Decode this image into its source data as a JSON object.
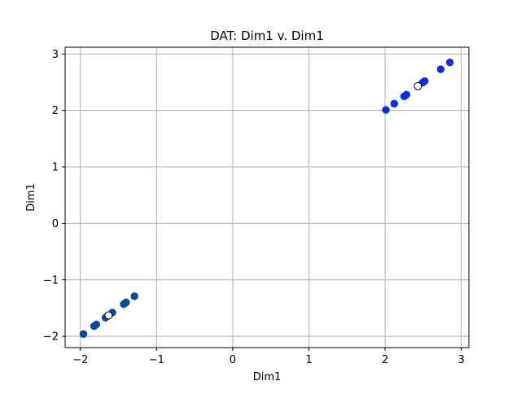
{
  "chart_data": {
    "type": "scatter",
    "title": "DAT: Dim1 v. Dim1",
    "xlabel": "Dim1",
    "ylabel": "Dim1",
    "xlim": [
      -2.2,
      3.1
    ],
    "ylim": [
      -2.2,
      3.12
    ],
    "xticks": [
      -2,
      -1,
      0,
      1,
      2,
      3
    ],
    "yticks": [
      -2,
      -1,
      0,
      1,
      2,
      3
    ],
    "xtick_labels": [
      "−2",
      "−1",
      "0",
      "1",
      "2",
      "3"
    ],
    "ytick_labels": [
      "−2",
      "−1",
      "0",
      "1",
      "2",
      "3"
    ],
    "grid": true,
    "series": [
      {
        "color": "#0a4a9c",
        "x": [
          -1.96,
          -1.82,
          -1.79,
          -1.67,
          -1.64,
          -1.58,
          -1.43,
          -1.4,
          -1.29
        ],
        "y": [
          -1.96,
          -1.82,
          -1.79,
          -1.67,
          -1.64,
          -1.58,
          -1.43,
          -1.4,
          -1.29
        ]
      },
      {
        "color": "#0a2fe0",
        "x": [
          2.01,
          2.12,
          2.25,
          2.28,
          2.49,
          2.52,
          2.73,
          2.85
        ],
        "y": [
          2.01,
          2.12,
          2.25,
          2.28,
          2.49,
          2.52,
          2.73,
          2.85
        ]
      },
      {
        "color": "#ffffff",
        "edge_color": "#000000",
        "x": [
          -1.63,
          2.43
        ],
        "y": [
          -1.63,
          2.43
        ]
      }
    ]
  }
}
